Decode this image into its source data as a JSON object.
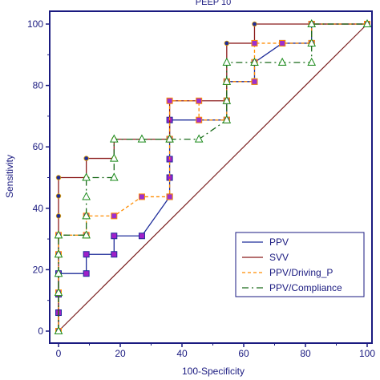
{
  "chart_data": {
    "type": "line",
    "title": "PEEP 10",
    "xlabel": "100-Specificity",
    "ylabel": "Sensitivity",
    "xlim": [
      0,
      100
    ],
    "ylim": [
      0,
      100
    ],
    "x_ticks": [
      0,
      20,
      40,
      60,
      80,
      100
    ],
    "y_ticks": [
      0,
      20,
      40,
      60,
      80,
      100
    ],
    "grid": false,
    "legend_position": "bottom-right",
    "diagonal": true,
    "colors": {
      "axis": "#1a1a80",
      "diagonal": "#7a1f1f",
      "legend_border": "#1a1a80"
    },
    "series": [
      {
        "name": "PPV",
        "color": "#1f2d9a",
        "dash": "solid",
        "marker": "square",
        "marker_fill": "#a020c8",
        "marker_stroke": "#1f2d9a",
        "points": [
          [
            0,
            0
          ],
          [
            0,
            6
          ],
          [
            0,
            12
          ],
          [
            0,
            18.75
          ],
          [
            9,
            18.75
          ],
          [
            9,
            25
          ],
          [
            18,
            25
          ],
          [
            18,
            31
          ],
          [
            27,
            31
          ],
          [
            36,
            43.75
          ],
          [
            36,
            50
          ],
          [
            36,
            56
          ],
          [
            36,
            62.5
          ],
          [
            36,
            68.75
          ],
          [
            54.5,
            68.75
          ],
          [
            54.5,
            75
          ],
          [
            54.5,
            81.25
          ],
          [
            63.5,
            81.25
          ],
          [
            63.5,
            87.5
          ],
          [
            72.5,
            93.75
          ],
          [
            82,
            93.75
          ],
          [
            82,
            100
          ],
          [
            100,
            100
          ]
        ]
      },
      {
        "name": "SVV",
        "color": "#8b1a1a",
        "dash": "solid",
        "marker": "circle",
        "marker_fill": "#1f2d9a",
        "marker_stroke": "#e0a000",
        "points": [
          [
            0,
            0
          ],
          [
            0,
            37.5
          ],
          [
            0,
            44
          ],
          [
            0,
            50
          ],
          [
            9,
            50
          ],
          [
            9,
            56.25
          ],
          [
            18,
            56.25
          ],
          [
            18,
            62.5
          ],
          [
            36,
            62.5
          ],
          [
            36,
            75
          ],
          [
            45.5,
            75
          ],
          [
            54.5,
            75
          ],
          [
            54.5,
            93.75
          ],
          [
            63.5,
            93.75
          ],
          [
            63.5,
            100
          ],
          [
            100,
            100
          ]
        ]
      },
      {
        "name": "PPV/Driving_P",
        "color": "#ff8c00",
        "dash": "4,3",
        "marker": "square",
        "marker_fill": "#9b30d0",
        "marker_stroke": "#ff8c00",
        "points": [
          [
            0,
            0
          ],
          [
            0,
            12.5
          ],
          [
            0,
            25
          ],
          [
            0,
            31.25
          ],
          [
            9,
            31.25
          ],
          [
            9,
            37.5
          ],
          [
            18,
            37.5
          ],
          [
            27,
            43.75
          ],
          [
            36,
            43.75
          ],
          [
            36,
            62.5
          ],
          [
            36,
            75
          ],
          [
            45.5,
            75
          ],
          [
            45.5,
            68.75
          ],
          [
            54.5,
            68.75
          ],
          [
            54.5,
            75
          ],
          [
            54.5,
            81.25
          ],
          [
            63.5,
            81.25
          ],
          [
            63.5,
            87.5
          ],
          [
            63.5,
            93.75
          ],
          [
            72.5,
            93.75
          ],
          [
            82,
            93.75
          ],
          [
            82,
            100
          ],
          [
            100,
            100
          ]
        ]
      },
      {
        "name": "PPV/Compliance",
        "color": "#1a6a1a",
        "dash": "8,4,2,4",
        "marker": "triangle",
        "marker_fill": "#ffffff",
        "marker_stroke": "#1a8a1a",
        "points": [
          [
            0,
            0
          ],
          [
            0,
            12.5
          ],
          [
            0,
            18.75
          ],
          [
            0,
            25
          ],
          [
            0,
            31.25
          ],
          [
            9,
            31.25
          ],
          [
            9,
            37.5
          ],
          [
            9,
            43.75
          ],
          [
            9,
            50
          ],
          [
            18,
            50
          ],
          [
            18,
            56.25
          ],
          [
            18,
            62.5
          ],
          [
            27,
            62.5
          ],
          [
            36,
            62.5
          ],
          [
            45.5,
            62.5
          ],
          [
            54.5,
            68.75
          ],
          [
            54.5,
            75
          ],
          [
            54.5,
            81.25
          ],
          [
            54.5,
            87.5
          ],
          [
            63.5,
            87.5
          ],
          [
            72.5,
            87.5
          ],
          [
            82,
            87.5
          ],
          [
            82,
            93.75
          ],
          [
            82,
            100
          ],
          [
            100,
            100
          ]
        ]
      }
    ]
  }
}
